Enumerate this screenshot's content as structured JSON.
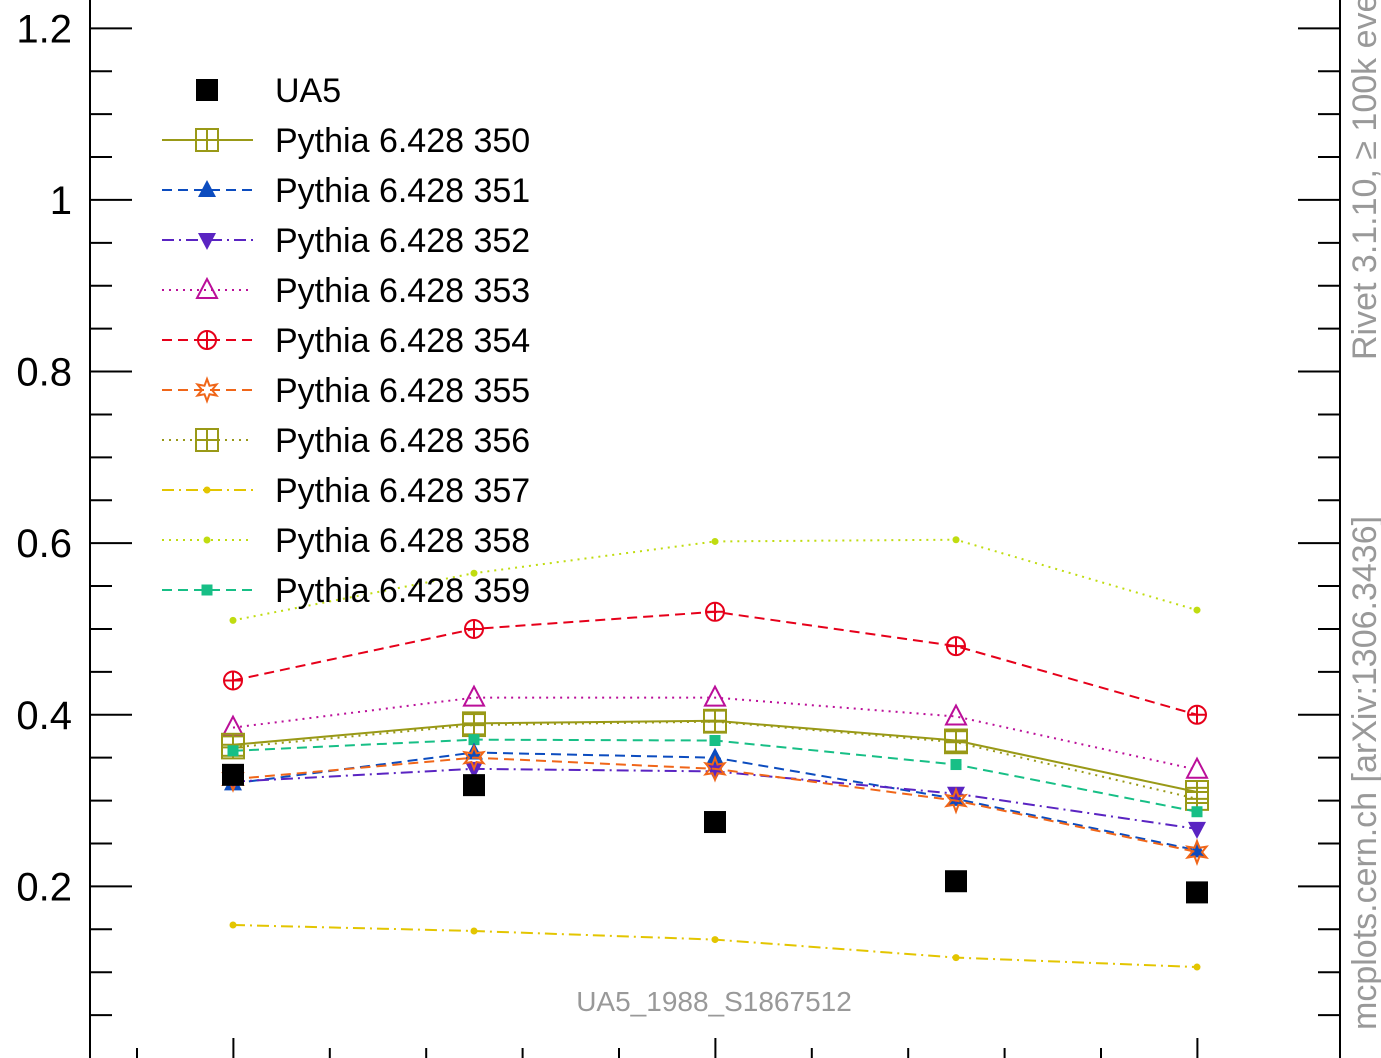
{
  "chart_data": {
    "type": "line",
    "title": "",
    "xlabel": "",
    "ylabel": "",
    "x": [
      1,
      2,
      3,
      4,
      5
    ],
    "ylim": [
      0.0,
      1.233
    ],
    "yticks": [
      {
        "value": 0.2,
        "label": "0.2"
      },
      {
        "value": 0.4,
        "label": "0.4"
      },
      {
        "value": 0.6,
        "label": "0.6"
      },
      {
        "value": 0.8,
        "label": "0.8"
      },
      {
        "value": 1.0,
        "label": "1"
      },
      {
        "value": 1.2,
        "label": "1.2"
      }
    ],
    "legend_position": "top-left",
    "grid": false,
    "analysis_label": "UA5_1988_S1867512",
    "side_label_top": "Rivet 3.1.10, ≥ 100k events",
    "side_label_bottom": "mcplots.cern.ch [arXiv:1306.3436]",
    "series": [
      {
        "name": "UA5",
        "color": "#000000",
        "dash": "none",
        "marker": "square-filled",
        "line": false,
        "values": [
          0.33,
          0.318,
          0.275,
          0.206,
          0.193
        ]
      },
      {
        "name": "Pythia 6.428 350",
        "color": "#999917",
        "dash": "solid",
        "marker": "square-open-cross",
        "line": true,
        "values": [
          0.365,
          0.39,
          0.393,
          0.37,
          0.31
        ]
      },
      {
        "name": "Pythia 6.428 351",
        "color": "#0c4cbf",
        "dash": "dash",
        "marker": "triangle-up-filled",
        "line": true,
        "values": [
          0.32,
          0.356,
          0.35,
          0.302,
          0.242
        ]
      },
      {
        "name": "Pythia 6.428 352",
        "color": "#5a24c2",
        "dash": "dashdot",
        "marker": "triangle-down-filled",
        "line": true,
        "values": [
          0.322,
          0.337,
          0.334,
          0.308,
          0.267
        ]
      },
      {
        "name": "Pythia 6.428 353",
        "color": "#bb0f99",
        "dash": "dot",
        "marker": "triangle-up-open",
        "line": true,
        "values": [
          0.385,
          0.42,
          0.42,
          0.398,
          0.336
        ]
      },
      {
        "name": "Pythia 6.428 354",
        "color": "#e6001a",
        "dash": "dash",
        "marker": "circle-open-cross",
        "line": true,
        "values": [
          0.44,
          0.5,
          0.52,
          0.48,
          0.4
        ]
      },
      {
        "name": "Pythia 6.428 355",
        "color": "#f06619",
        "dash": "dash",
        "marker": "star",
        "line": true,
        "values": [
          0.325,
          0.35,
          0.337,
          0.3,
          0.24
        ]
      },
      {
        "name": "Pythia 6.428 356",
        "color": "#999917",
        "dash": "dot",
        "marker": "square-open-cross",
        "line": true,
        "values": [
          0.362,
          0.388,
          0.392,
          0.368,
          0.302
        ]
      },
      {
        "name": "Pythia 6.428 357",
        "color": "#e3c500",
        "dash": "dashdot",
        "marker": "dot",
        "line": true,
        "values": [
          0.155,
          0.148,
          0.138,
          0.117,
          0.106
        ]
      },
      {
        "name": "Pythia 6.428 358",
        "color": "#c0dc10",
        "dash": "dot",
        "marker": "dot",
        "line": true,
        "values": [
          0.51,
          0.565,
          0.602,
          0.604,
          0.522
        ]
      },
      {
        "name": "Pythia 6.428 359",
        "color": "#17bf86",
        "dash": "dash",
        "marker": "square-small",
        "line": true,
        "values": [
          0.358,
          0.371,
          0.37,
          0.342,
          0.287
        ]
      }
    ]
  }
}
